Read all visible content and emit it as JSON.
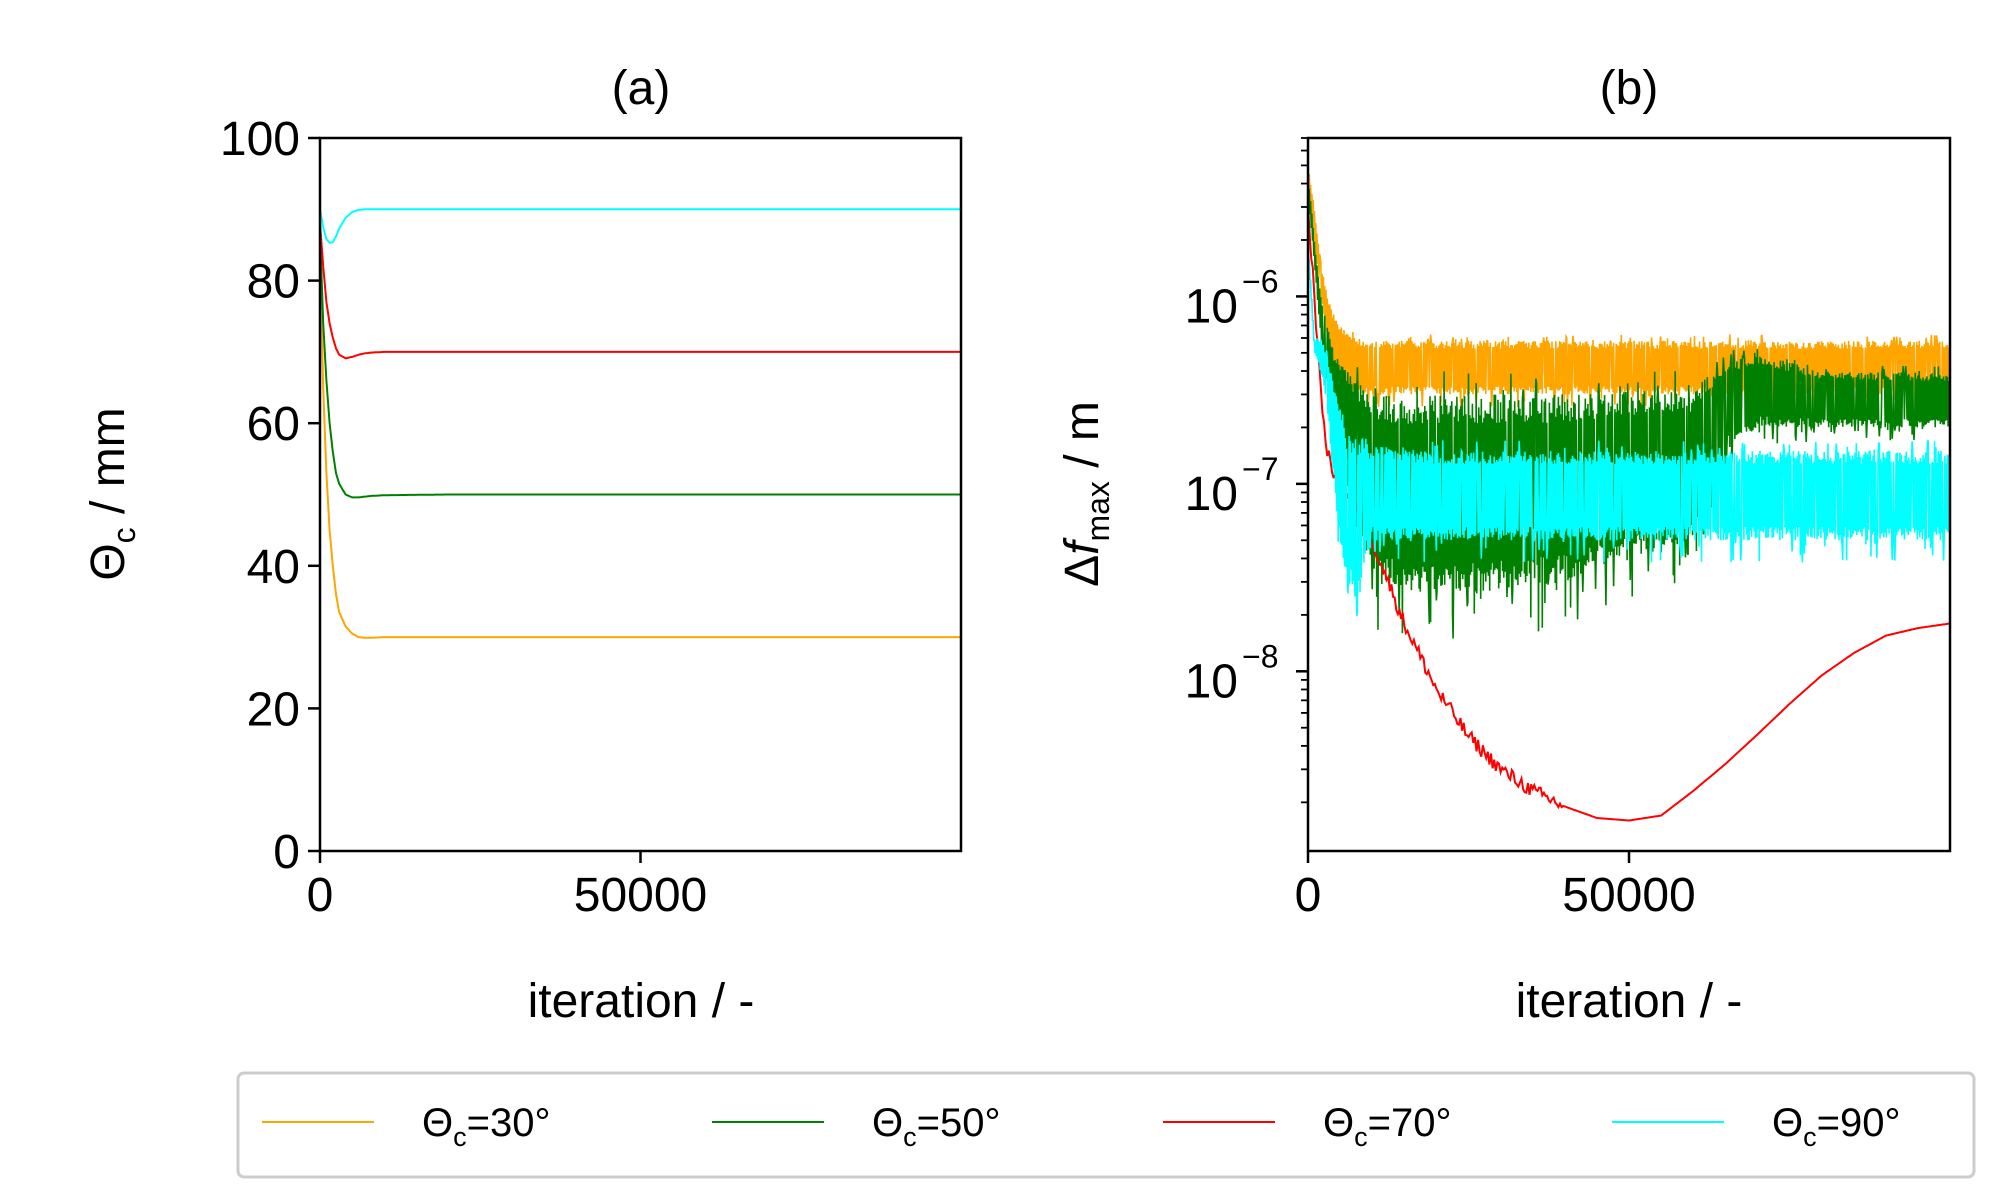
{
  "colors": {
    "s30": "#ffa500",
    "s50": "#008000",
    "s70": "#ff0000",
    "s90": "#00ffff",
    "axes": "#000000",
    "legend_border": "#cccccc"
  },
  "legend": {
    "placement": "bottom-center",
    "items": [
      {
        "sym": "Θ",
        "sub": "c",
        "rest": "=30°",
        "color": "#ffa500"
      },
      {
        "sym": "Θ",
        "sub": "c",
        "rest": "=50°",
        "color": "#008000"
      },
      {
        "sym": "Θ",
        "sub": "c",
        "rest": "=70°",
        "color": "#ff0000"
      },
      {
        "sym": "Θ",
        "sub": "c",
        "rest": "=90°",
        "color": "#00ffff"
      }
    ]
  },
  "chart_data": [
    {
      "type": "line",
      "title": "(a)",
      "xlabel": "iteration / -",
      "ylabel": {
        "sym": "Θ",
        "sub": "c",
        "rest": " / mm"
      },
      "xlim": [
        0,
        100000
      ],
      "ylim": [
        0,
        100
      ],
      "xticks": [
        0,
        50000
      ],
      "xtick_labels": [
        "0",
        "50000"
      ],
      "yticks": [
        0,
        20,
        40,
        60,
        80,
        100
      ],
      "ytick_labels": [
        "0",
        "20",
        "40",
        "60",
        "80",
        "100"
      ],
      "grid": false,
      "series": [
        {
          "name": "Θc=30°",
          "color": "#ffa500",
          "x": [
            0,
            500,
            1000,
            1500,
            2000,
            2500,
            3000,
            4000,
            5000,
            6000,
            7000,
            8000,
            10000,
            20000,
            50000,
            100000
          ],
          "y": [
            84,
            65,
            53,
            45,
            40,
            36,
            33.5,
            31.5,
            30.5,
            30,
            29.9,
            29.9,
            30,
            30,
            30,
            30
          ]
        },
        {
          "name": "Θc=50°",
          "color": "#008000",
          "x": [
            0,
            500,
            1000,
            1500,
            2000,
            2500,
            3000,
            4000,
            5000,
            6000,
            7000,
            8000,
            10000,
            20000,
            50000,
            100000
          ],
          "y": [
            87,
            74,
            66,
            60,
            56,
            53,
            51.5,
            50,
            49.6,
            49.6,
            49.7,
            49.8,
            49.9,
            50,
            50,
            50
          ]
        },
        {
          "name": "Θc=70°",
          "color": "#ff0000",
          "x": [
            0,
            500,
            1000,
            1500,
            2000,
            2500,
            3000,
            4000,
            5000,
            6000,
            7000,
            8000,
            10000,
            20000,
            50000,
            100000
          ],
          "y": [
            88,
            82,
            77,
            74,
            72,
            70.5,
            69.6,
            69.1,
            69.3,
            69.6,
            69.8,
            69.9,
            70,
            70,
            70,
            70
          ]
        },
        {
          "name": "Θc=90°",
          "color": "#00ffff",
          "x": [
            0,
            500,
            1000,
            1500,
            2000,
            2500,
            3000,
            4000,
            5000,
            6000,
            7000,
            8000,
            10000,
            20000,
            50000,
            100000
          ],
          "y": [
            90,
            87.5,
            85.8,
            85.3,
            85.4,
            86.2,
            87.3,
            88.8,
            89.6,
            89.9,
            90,
            90,
            90,
            90,
            90,
            90
          ]
        }
      ]
    },
    {
      "type": "line",
      "title": "(b)",
      "xlabel": "iteration / -",
      "ylabel": {
        "sym": "Δ",
        "ital": "f",
        "sub": "max",
        "rest": "  / m"
      },
      "yscale": "log",
      "xlim": [
        0,
        100000
      ],
      "ylim": [
        1.1e-09,
        7e-06
      ],
      "xticks": [
        0,
        50000
      ],
      "xtick_labels": [
        "0",
        "50000"
      ],
      "yticks": [
        1e-08,
        1e-07,
        1e-06
      ],
      "ytick_labels": [
        {
          "base": "10",
          "exp": "−8"
        },
        {
          "base": "10",
          "exp": "−7"
        },
        {
          "base": "10",
          "exp": "−6"
        }
      ],
      "grid": false,
      "series": [
        {
          "name": "Θc=30°",
          "color": "#ffa500",
          "noisy": true,
          "x": [
            0,
            1000,
            2000,
            3000,
            4000,
            5000,
            6000,
            8000,
            10000,
            20000,
            40000,
            60000,
            80000,
            100000
          ],
          "upper": [
            5e-06,
            3e-06,
            1.5e-06,
            1e-06,
            8e-07,
            7e-07,
            6.5e-07,
            6e-07,
            5.8e-07,
            5.8e-07,
            5.8e-07,
            5.8e-07,
            5.8e-07,
            5.8e-07
          ],
          "lower": [
            4e-06,
            2e-06,
            1e-06,
            6e-07,
            4e-07,
            3.5e-07,
            3.2e-07,
            3e-07,
            3e-07,
            3e-07,
            3e-07,
            3e-07,
            3e-07,
            3e-07
          ]
        },
        {
          "name": "Θc=50°",
          "color": "#008000",
          "noisy": true,
          "x": [
            0,
            1000,
            2000,
            4000,
            6000,
            8000,
            10000,
            20000,
            40000,
            60000,
            65000,
            70000,
            80000,
            100000
          ],
          "upper": [
            4.5e-06,
            2e-06,
            1e-06,
            5e-07,
            4e-07,
            3.5e-07,
            3e-07,
            3e-07,
            3e-07,
            3.2e-07,
            4.5e-07,
            5e-07,
            4e-07,
            3.9e-07
          ],
          "lower": [
            3.5e-06,
            1.5e-06,
            6e-07,
            2.5e-07,
            1.2e-07,
            6e-08,
            3e-08,
            2.5e-08,
            3e-08,
            5e-08,
            1.5e-07,
            2e-07,
            2e-07,
            2e-07
          ]
        },
        {
          "name": "Θc=70°",
          "color": "#ff0000",
          "noisy": false,
          "x": [
            0,
            1000,
            2000,
            3000,
            4000,
            5000,
            6000,
            8000,
            10000,
            15000,
            20000,
            25000,
            30000,
            35000,
            40000,
            45000,
            50000,
            55000,
            60000,
            65000,
            70000,
            75000,
            80000,
            85000,
            90000,
            95000,
            100000
          ],
          "y": [
            3e-06,
            1e-06,
            3e-07,
            1.5e-07,
            1.1e-07,
            1e-07,
            9e-08,
            7e-08,
            5e-08,
            1.8e-08,
            8e-09,
            4.5e-09,
            3e-09,
            2.3e-09,
            1.9e-09,
            1.65e-09,
            1.6e-09,
            1.7e-09,
            2.3e-09,
            3.2e-09,
            4.6e-09,
            6.7e-09,
            9.5e-09,
            1.25e-08,
            1.55e-08,
            1.7e-08,
            1.8e-08
          ]
        },
        {
          "name": "Θc=90°",
          "color": "#00ffff",
          "noisy": true,
          "x": [
            0,
            1000,
            2000,
            3000,
            4000,
            5000,
            6000,
            7000,
            8000,
            9000,
            10000,
            20000,
            40000,
            60000,
            80000,
            100000
          ],
          "upper": [
            2e-06,
            6e-07,
            6e-07,
            5e-07,
            3.5e-07,
            2.5e-07,
            2e-07,
            1.8e-07,
            1.7e-07,
            1.7e-07,
            1.6e-07,
            1.5e-07,
            1.5e-07,
            1.5e-07,
            1.5e-07,
            1.5e-07
          ],
          "lower": [
            1.8e-06,
            5e-07,
            4e-07,
            2.5e-07,
            1e-07,
            5e-08,
            3e-08,
            2.5e-08,
            2.5e-08,
            4e-08,
            5e-08,
            5e-08,
            5e-08,
            5e-08,
            5e-08,
            5e-08
          ]
        }
      ]
    }
  ]
}
